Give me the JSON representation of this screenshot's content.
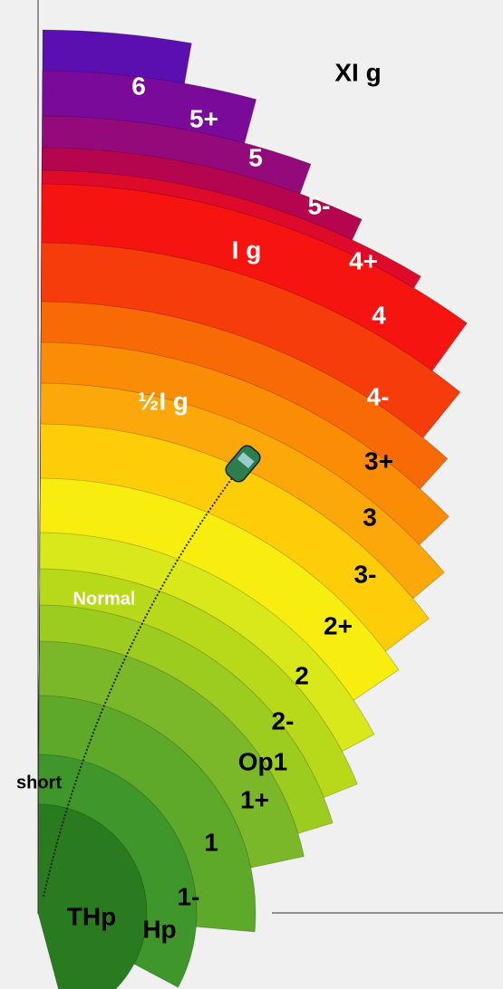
{
  "bands": [
    {
      "label": "6"
    },
    {
      "label": "5+"
    },
    {
      "label": "5"
    },
    {
      "label": "5-"
    },
    {
      "label": "4+"
    },
    {
      "label": "4"
    },
    {
      "label": "4-"
    },
    {
      "label": "3+"
    },
    {
      "label": "3"
    },
    {
      "label": "3-"
    },
    {
      "label": "2+"
    },
    {
      "label": "2"
    },
    {
      "label": "2-"
    },
    {
      "label": "Op1"
    },
    {
      "label": "1+"
    },
    {
      "label": "1"
    },
    {
      "label": "1-"
    },
    {
      "label": "Hp"
    },
    {
      "label": "THp"
    }
  ],
  "annotations": {
    "xlg": "XI g",
    "lg": "I g",
    "half_lg": "½I g",
    "normal": "Normal",
    "short": "short"
  }
}
